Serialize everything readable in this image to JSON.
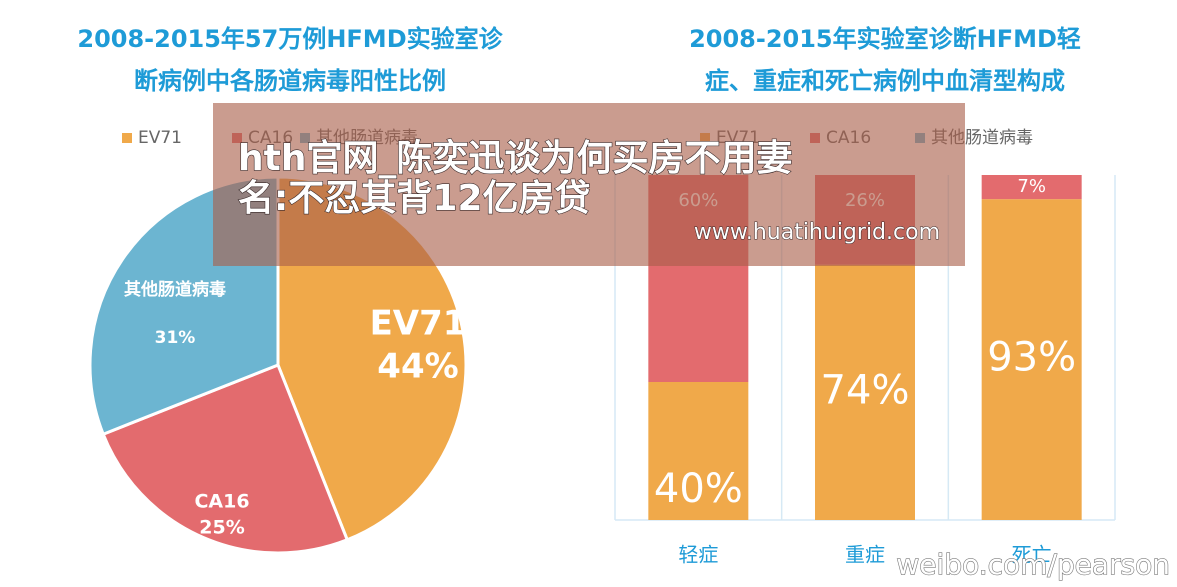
{
  "chart_data": [
    {
      "type": "pie",
      "title": [
        "2008-2015年57万例HFMD实验室诊",
        "断病例中各肠道病毒阳性比例"
      ],
      "categories": [
        "EV71",
        "CA16",
        "其他肠道病毒"
      ],
      "values": [
        44,
        25,
        31
      ],
      "value_labels": [
        "44%",
        "25%",
        "31%"
      ],
      "colors": [
        "#f0a94a",
        "#e36b6e",
        "#6cb5d1"
      ]
    },
    {
      "type": "bar",
      "title": [
        "2008-2015年实验室诊断HFMD轻",
        "症、重症和死亡病例中血清型构成"
      ],
      "stacked": true,
      "categories": [
        "轻症",
        "重症",
        "死亡"
      ],
      "series": [
        {
          "name": "EV71",
          "color": "#f0a94a",
          "values": [
            40,
            74,
            93
          ],
          "value_labels": [
            "40%",
            "74%",
            "93%"
          ]
        },
        {
          "name": "CA16",
          "color": "#e36b6e",
          "values": [
            60,
            26,
            7
          ],
          "value_labels": [
            "60%",
            "26%",
            "7%"
          ]
        },
        {
          "name": "其他肠道病毒",
          "color": "#6cb5d1",
          "values": [
            0,
            0,
            0
          ]
        }
      ],
      "ylim": [
        0,
        100
      ]
    }
  ],
  "overlay": {
    "headline": [
      "hth官网_陈奕迅谈为何买房不用妻",
      "名:不忍其背12亿房贷"
    ],
    "url": "www.huatihuigrid.com"
  },
  "watermark": "weibo.com/pearson"
}
